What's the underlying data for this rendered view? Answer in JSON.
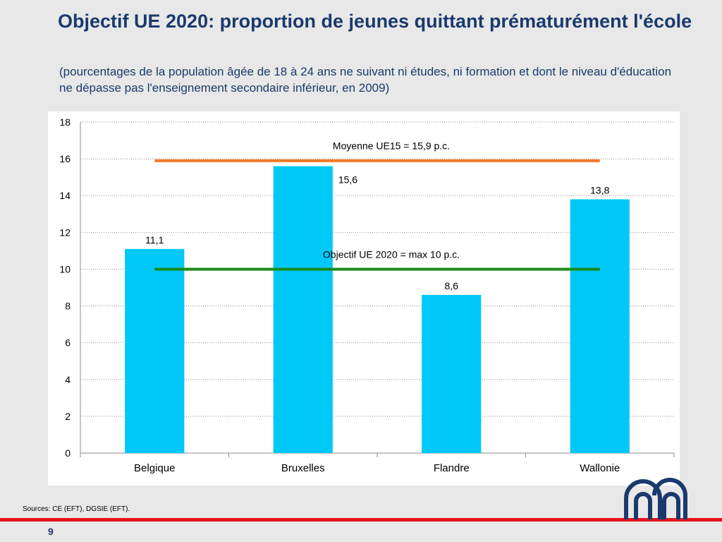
{
  "slide": {
    "title": "Objectif UE 2020: proportion de jeunes quittant prématurément l'école",
    "subtitle": "(pourcentages de la population âgée de 18 à 24 ans ne suivant ni études, ni formation et dont le niveau d'éducation ne dépasse pas l'enseignement secondaire inférieur, en 2009)",
    "sources": "Sources: CE (EFT), DGSIE (EFT).",
    "page_number": "9"
  },
  "colors": {
    "bars": "#00c8f8",
    "average_line": "#f07828",
    "target_line": "#1a8a1a",
    "title": "#1a3a6e",
    "accent_red": "#e4141b",
    "logo": "#1a3a6e"
  },
  "chart_data": {
    "type": "bar",
    "categories": [
      "Belgique",
      "Bruxelles",
      "Flandre",
      "Wallonie"
    ],
    "values": [
      11.1,
      15.6,
      8.6,
      13.8
    ],
    "value_labels": [
      "11,1",
      "15,6",
      "8,6",
      "13,8"
    ],
    "ylim": [
      0,
      18
    ],
    "yticks": [
      0,
      2,
      4,
      6,
      8,
      10,
      12,
      14,
      16,
      18
    ],
    "grid": true,
    "reference_lines": [
      {
        "label": "Moyenne UE15 =  15,9 p.c.",
        "value": 15.9
      },
      {
        "label": "Objectif UE 2020 = max 10 p.c.",
        "value": 10
      }
    ]
  }
}
